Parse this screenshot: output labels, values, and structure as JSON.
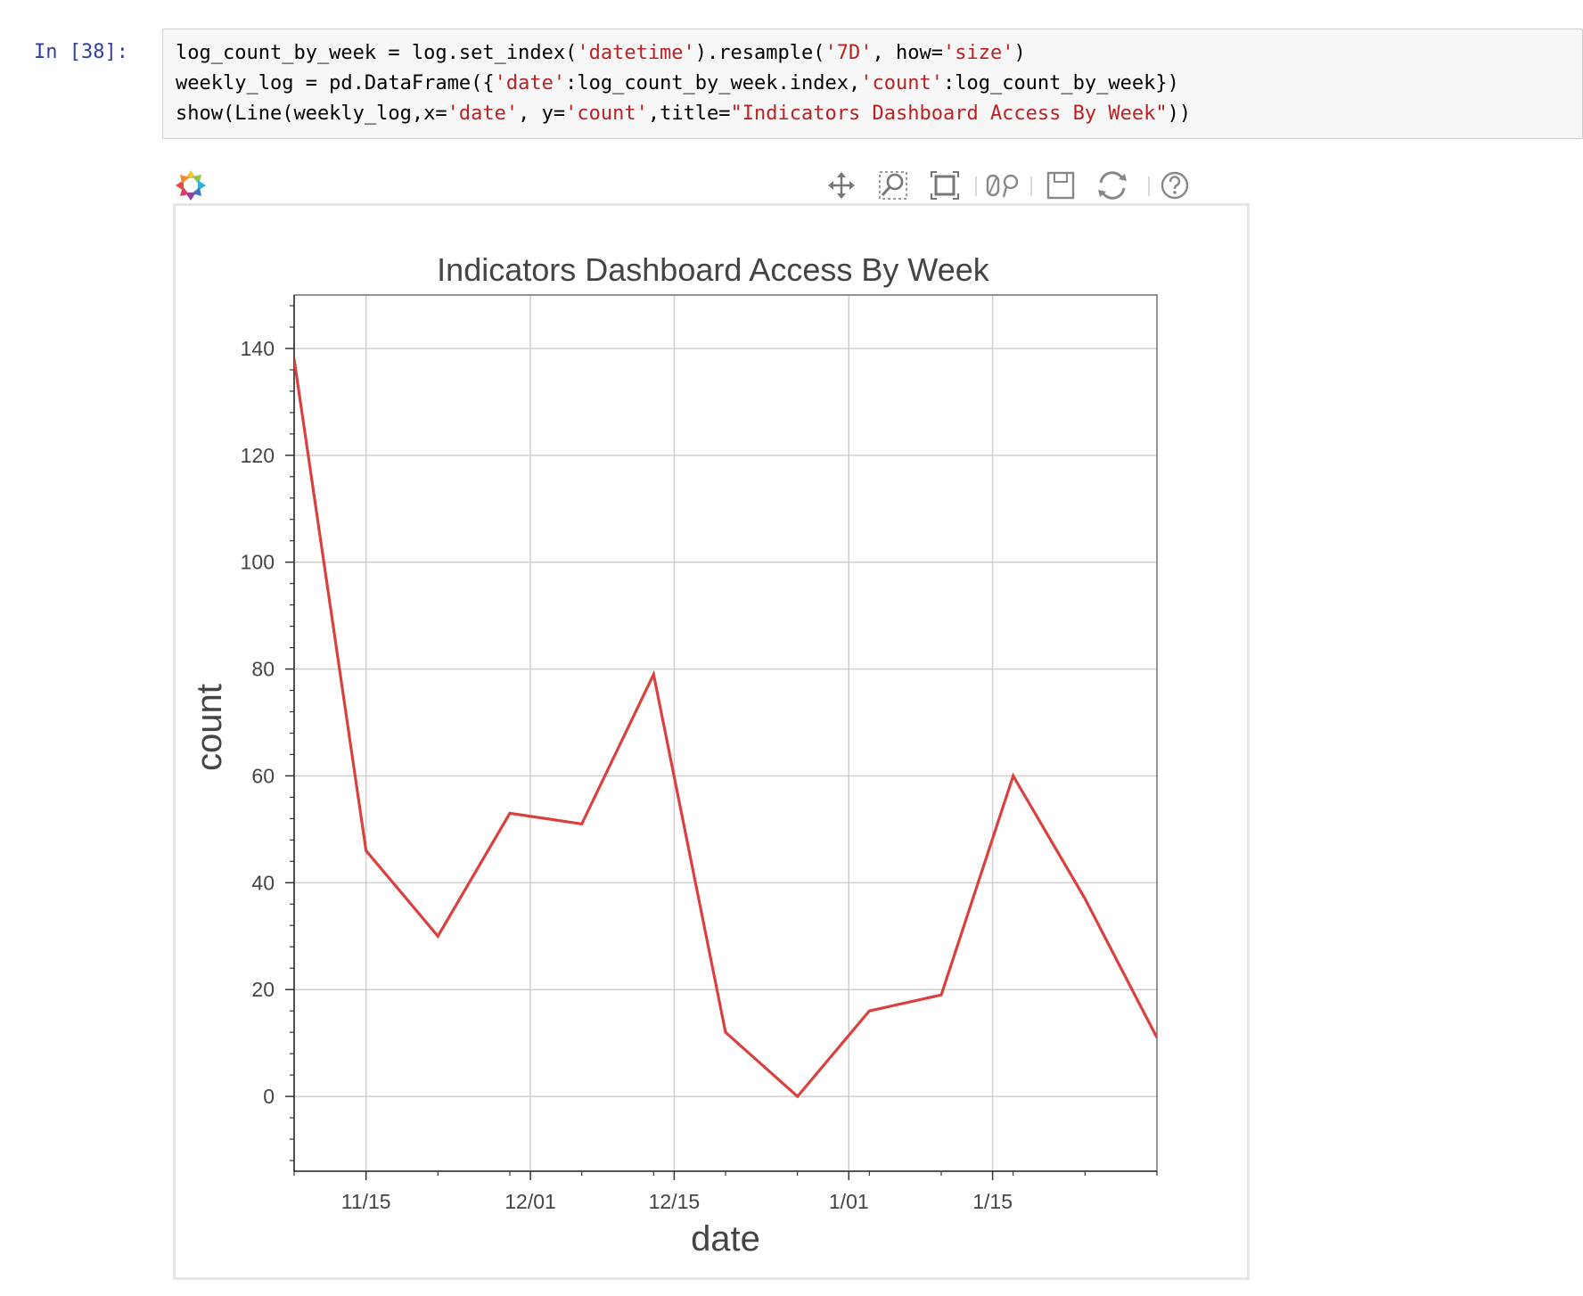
{
  "cell": {
    "prompt": "In [38]:",
    "code_lines": [
      [
        {
          "text": "log_count_by_week = log.set_index(",
          "type": "plain"
        },
        {
          "text": "'datetime'",
          "type": "str"
        },
        {
          "text": ").resample(",
          "type": "plain"
        },
        {
          "text": "'7D'",
          "type": "str"
        },
        {
          "text": ", how=",
          "type": "plain"
        },
        {
          "text": "'size'",
          "type": "str"
        },
        {
          "text": ")",
          "type": "plain"
        }
      ],
      [
        {
          "text": "weekly_log = pd.DataFrame({",
          "type": "plain"
        },
        {
          "text": "'date'",
          "type": "str"
        },
        {
          "text": ":log_count_by_week.index,",
          "type": "plain"
        },
        {
          "text": "'count'",
          "type": "str"
        },
        {
          "text": ":log_count_by_week})",
          "type": "plain"
        }
      ],
      [
        {
          "text": "show(Line(weekly_log,x=",
          "type": "plain"
        },
        {
          "text": "'date'",
          "type": "str"
        },
        {
          "text": ", y=",
          "type": "plain"
        },
        {
          "text": "'count'",
          "type": "str"
        },
        {
          "text": ",title=",
          "type": "plain"
        },
        {
          "text": "\"Indicators Dashboard Access By Week\"",
          "type": "str"
        },
        {
          "text": "))",
          "type": "plain"
        }
      ]
    ]
  },
  "toolbar": {
    "tools": [
      {
        "name": "pan-tool",
        "icon": "pan-icon",
        "active": true
      },
      {
        "name": "wheel-zoom-tool",
        "icon": "zoom-icon",
        "active": false
      },
      {
        "name": "box-zoom-tool",
        "icon": "box-zoom-icon",
        "active": false
      },
      {
        "name": "resize-tool",
        "icon": "resize-icon",
        "active": false
      },
      {
        "name": "save-tool",
        "icon": "save-icon",
        "active": false
      },
      {
        "name": "reset-tool",
        "icon": "reset-icon",
        "active": false
      },
      {
        "name": "help-tool",
        "icon": "help-icon",
        "active": false
      }
    ],
    "active_color": "#26aae1"
  },
  "chart_data": {
    "type": "line",
    "title": "Indicators Dashboard Access By Week",
    "xlabel": "date",
    "ylabel": "count",
    "x": [
      "2014-11-08",
      "2014-11-15",
      "2014-11-22",
      "2014-11-29",
      "2014-12-06",
      "2014-12-13",
      "2014-12-20",
      "2014-12-27",
      "2015-01-03",
      "2015-01-10",
      "2015-01-17",
      "2015-01-24",
      "2015-01-31"
    ],
    "series": [
      {
        "values": [
          138,
          46,
          30,
          53,
          51,
          79,
          12,
          0,
          16,
          19,
          60,
          37,
          11
        ],
        "color": "#d9413e"
      }
    ],
    "xlim": [
      "2014-11-08",
      "2015-01-31"
    ],
    "ylim": [
      -14,
      150
    ],
    "x_ticks": [
      {
        "date": "2014-11-15",
        "label": "11/15"
      },
      {
        "date": "2014-12-01",
        "label": "12/01"
      },
      {
        "date": "2014-12-15",
        "label": "12/15"
      },
      {
        "date": "2015-01-01",
        "label": "1/01"
      },
      {
        "date": "2015-01-15",
        "label": "1/15"
      }
    ],
    "y_ticks": [
      0,
      20,
      40,
      60,
      80,
      100,
      120,
      140
    ],
    "grid": true
  }
}
